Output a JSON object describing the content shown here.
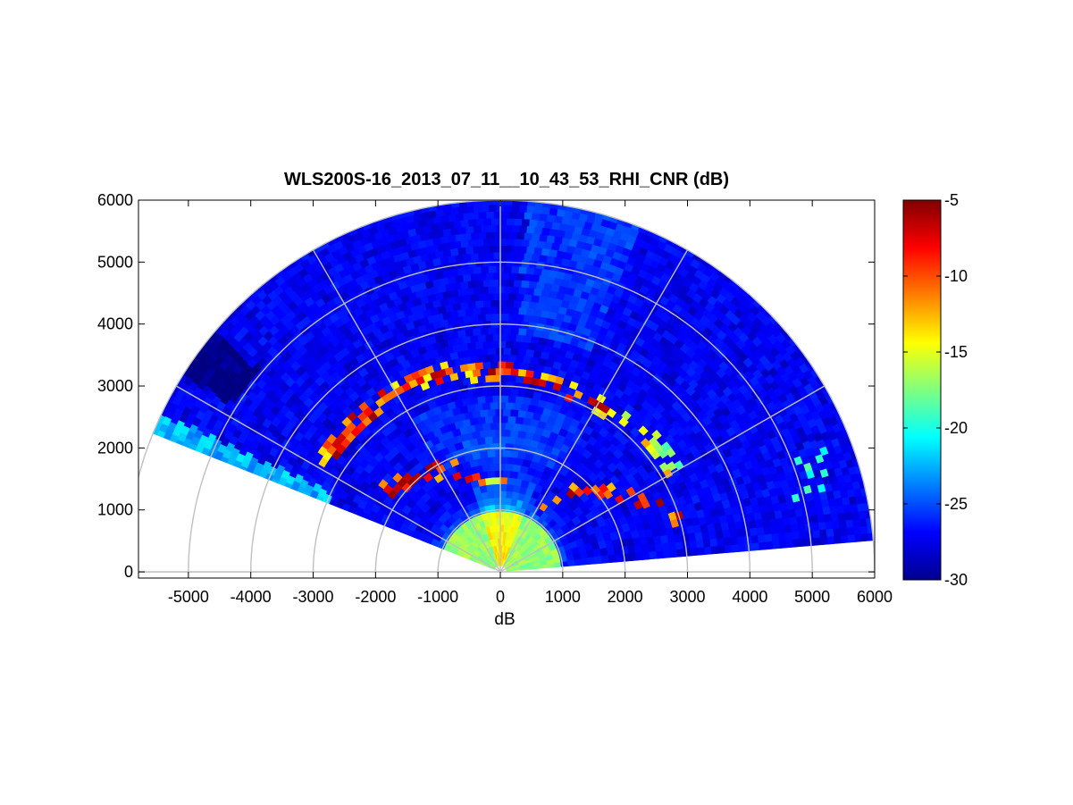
{
  "chart_data": {
    "type": "heatmap",
    "subtype": "polar-sector (RHI scan)",
    "title": "WLS200S-16_2013_07_11__10_43_53_RHI_CNR (dB)",
    "xlabel": "dB",
    "ylabel": "",
    "xlim": [
      -5800,
      6000
    ],
    "ylim": [
      -100,
      6000
    ],
    "xticks": [
      "-5000",
      "-4000",
      "-3000",
      "-2000",
      "-1000",
      "0",
      "1000",
      "2000",
      "3000",
      "4000",
      "5000",
      "6000"
    ],
    "yticks": [
      "0",
      "1000",
      "2000",
      "3000",
      "4000",
      "5000",
      "6000"
    ],
    "scan": {
      "elevation_range_deg": [
        5,
        158
      ],
      "max_range": 6000,
      "range_rings": [
        1000,
        2000,
        3000,
        4000,
        5000,
        6000
      ],
      "spokes_deg": [
        0,
        30,
        60,
        90,
        120,
        150,
        180
      ]
    },
    "colorbar": {
      "colormap": "jet",
      "clim": [
        -30,
        -5
      ],
      "ticks": [
        "-5",
        "-10",
        "-15",
        "-20",
        "-25",
        "-30"
      ]
    },
    "features": [
      {
        "label": "strong return band",
        "range_approx": [
          3100,
          3500
        ],
        "cnr_db": [
          -12,
          -5
        ]
      },
      {
        "label": "strong return band",
        "range_approx": [
          1200,
          1700
        ],
        "cnr_db": [
          -12,
          -5
        ]
      },
      {
        "label": "near-field high CNR",
        "range_approx": [
          0,
          1200
        ],
        "cnr_db": [
          -18,
          -14
        ]
      }
    ],
    "grid": true,
    "legend": "none"
  }
}
